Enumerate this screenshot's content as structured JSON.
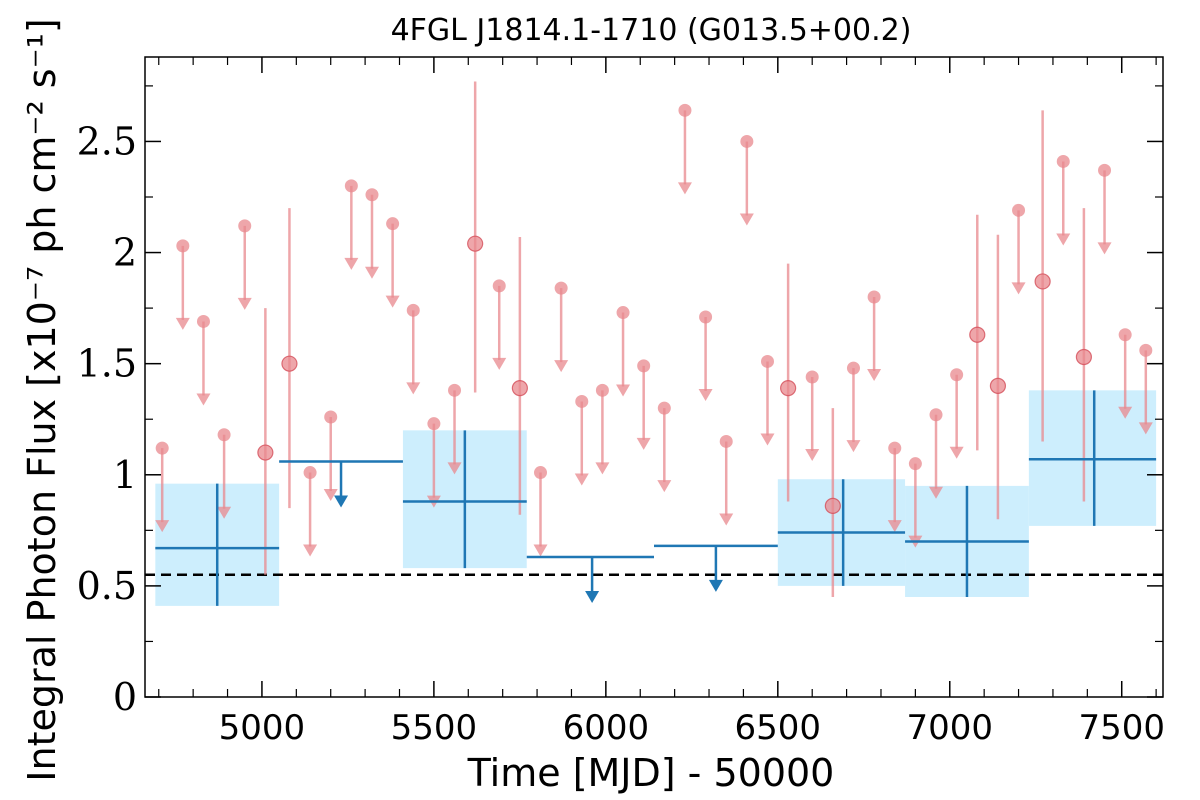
{
  "chart_data": {
    "type": "scatter",
    "title": "4FGL J1814.1-1710 (G013.5+00.2)",
    "xlabel": "Time [MJD] - 50000",
    "ylabel": "Integral Photon Flux [x10⁻⁷ ph cm⁻² s⁻¹]",
    "xlim": [
      4660,
      7620
    ],
    "ylim": [
      0,
      2.88
    ],
    "xticks": [
      5000,
      5500,
      6000,
      6500,
      7000,
      7500
    ],
    "xtick_labels": [
      "5000",
      "5500",
      "6000",
      "6500",
      "7000",
      "7500"
    ],
    "yticks": [
      0,
      0.5,
      1,
      1.5,
      2,
      2.5
    ],
    "ytick_labels": [
      "0",
      "0.5",
      "1",
      "1.5",
      "2",
      "2.5"
    ],
    "reference_line": 0.55,
    "colors": {
      "coarse": "#1f77b4",
      "coarse_fill": "#cdeefd",
      "fine": "#e8888e",
      "ref": "#000000"
    },
    "coarse_bins": {
      "detections": [
        {
          "x0": 4690,
          "x1": 5050,
          "xc": 4870,
          "y": 0.67,
          "ylo": 0.41,
          "yhi": 0.96
        },
        {
          "x0": 5410,
          "x1": 5770,
          "xc": 5590,
          "y": 0.88,
          "ylo": 0.58,
          "yhi": 1.2
        },
        {
          "x0": 6500,
          "x1": 6870,
          "xc": 6690,
          "y": 0.74,
          "ylo": 0.5,
          "yhi": 0.98
        },
        {
          "x0": 6870,
          "x1": 7230,
          "xc": 7050,
          "y": 0.7,
          "ylo": 0.45,
          "yhi": 0.95
        },
        {
          "x0": 7230,
          "x1": 7600,
          "xc": 7420,
          "y": 1.07,
          "ylo": 0.77,
          "yhi": 1.38
        }
      ],
      "upper_limits": [
        {
          "x0": 5050,
          "x1": 5410,
          "xc": 5230,
          "y": 1.06
        },
        {
          "x0": 5770,
          "x1": 6140,
          "xc": 5960,
          "y": 0.63
        },
        {
          "x0": 6140,
          "x1": 6500,
          "xc": 6320,
          "y": 0.68
        }
      ]
    },
    "fine_bins": {
      "detections": [
        {
          "x": 5010,
          "y": 1.1,
          "ylo": 0.55,
          "yhi": 1.75
        },
        {
          "x": 5080,
          "y": 1.5,
          "ylo": 0.85,
          "yhi": 2.2
        },
        {
          "x": 5620,
          "y": 2.04,
          "ylo": 1.37,
          "yhi": 2.77
        },
        {
          "x": 5750,
          "y": 1.39,
          "ylo": 0.82,
          "yhi": 2.07
        },
        {
          "x": 6530,
          "y": 1.39,
          "ylo": 0.88,
          "yhi": 1.95
        },
        {
          "x": 6660,
          "y": 0.86,
          "ylo": 0.45,
          "yhi": 1.3
        },
        {
          "x": 7080,
          "y": 1.63,
          "ylo": 1.11,
          "yhi": 2.17
        },
        {
          "x": 7140,
          "y": 1.4,
          "ylo": 0.8,
          "yhi": 2.08
        },
        {
          "x": 7270,
          "y": 1.87,
          "ylo": 1.15,
          "yhi": 2.64
        },
        {
          "x": 7390,
          "y": 1.53,
          "ylo": 0.88,
          "yhi": 2.2
        }
      ],
      "upper_limits": [
        {
          "x": 4710,
          "y": 1.12
        },
        {
          "x": 4770,
          "y": 2.03
        },
        {
          "x": 4830,
          "y": 1.69
        },
        {
          "x": 4890,
          "y": 1.18
        },
        {
          "x": 4950,
          "y": 2.12
        },
        {
          "x": 5140,
          "y": 1.01
        },
        {
          "x": 5200,
          "y": 1.26
        },
        {
          "x": 5260,
          "y": 2.3
        },
        {
          "x": 5320,
          "y": 2.26
        },
        {
          "x": 5380,
          "y": 2.13
        },
        {
          "x": 5440,
          "y": 1.74
        },
        {
          "x": 5500,
          "y": 1.23
        },
        {
          "x": 5560,
          "y": 1.38
        },
        {
          "x": 5690,
          "y": 1.85
        },
        {
          "x": 5810,
          "y": 1.01
        },
        {
          "x": 5870,
          "y": 1.84
        },
        {
          "x": 5930,
          "y": 1.33
        },
        {
          "x": 5990,
          "y": 1.38
        },
        {
          "x": 6050,
          "y": 1.73
        },
        {
          "x": 6110,
          "y": 1.49
        },
        {
          "x": 6170,
          "y": 1.3
        },
        {
          "x": 6230,
          "y": 2.64
        },
        {
          "x": 6290,
          "y": 1.71
        },
        {
          "x": 6350,
          "y": 1.15
        },
        {
          "x": 6410,
          "y": 2.5
        },
        {
          "x": 6470,
          "y": 1.51
        },
        {
          "x": 6600,
          "y": 1.44
        },
        {
          "x": 6720,
          "y": 1.48
        },
        {
          "x": 6780,
          "y": 1.8
        },
        {
          "x": 6840,
          "y": 1.12
        },
        {
          "x": 6900,
          "y": 1.05
        },
        {
          "x": 6960,
          "y": 1.27
        },
        {
          "x": 7020,
          "y": 1.45
        },
        {
          "x": 7200,
          "y": 2.19
        },
        {
          "x": 7330,
          "y": 2.41
        },
        {
          "x": 7450,
          "y": 2.37
        },
        {
          "x": 7510,
          "y": 1.63
        },
        {
          "x": 7570,
          "y": 1.56
        }
      ]
    }
  }
}
